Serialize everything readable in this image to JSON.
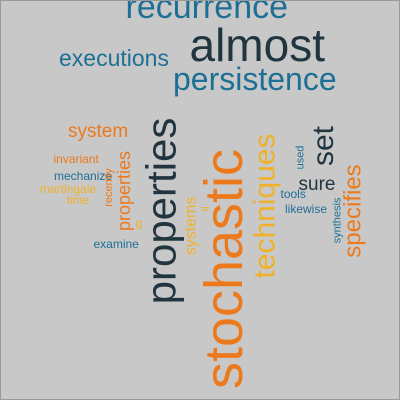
{
  "palette": {
    "background": "#c8c8c8",
    "dark": "#213540",
    "blue": "#1e6f95",
    "orange": "#ec7a1c",
    "yellow": "#f0b12a"
  },
  "words": [
    {
      "text": "recurrence",
      "color": "blue"
    },
    {
      "text": "almost",
      "color": "dark"
    },
    {
      "text": "executions",
      "color": "blue"
    },
    {
      "text": "persistence",
      "color": "blue"
    },
    {
      "text": "system",
      "color": "orange"
    },
    {
      "text": "properties",
      "color": "dark"
    },
    {
      "text": "stochastic",
      "color": "orange"
    },
    {
      "text": "techniques",
      "color": "yellow"
    },
    {
      "text": "set",
      "color": "dark"
    },
    {
      "text": "specifies",
      "color": "orange"
    },
    {
      "text": "sure",
      "color": "dark"
    },
    {
      "text": "used",
      "color": "blue"
    },
    {
      "text": "invariant",
      "color": "orange"
    },
    {
      "text": "mechanize",
      "color": "blue"
    },
    {
      "text": "martingale",
      "color": "yellow"
    },
    {
      "text": "time",
      "color": "yellow"
    },
    {
      "text": "recently",
      "color": "orange"
    },
    {
      "text": "properties",
      "color": "orange"
    },
    {
      "text": "g",
      "color": "yellow"
    },
    {
      "text": "systems",
      "color": "yellow"
    },
    {
      "text": "tl",
      "color": "yellow"
    },
    {
      "text": "tools",
      "color": "blue"
    },
    {
      "text": "likewise",
      "color": "blue"
    },
    {
      "text": "synthesis",
      "color": "blue"
    },
    {
      "text": "examine",
      "color": "blue"
    }
  ]
}
